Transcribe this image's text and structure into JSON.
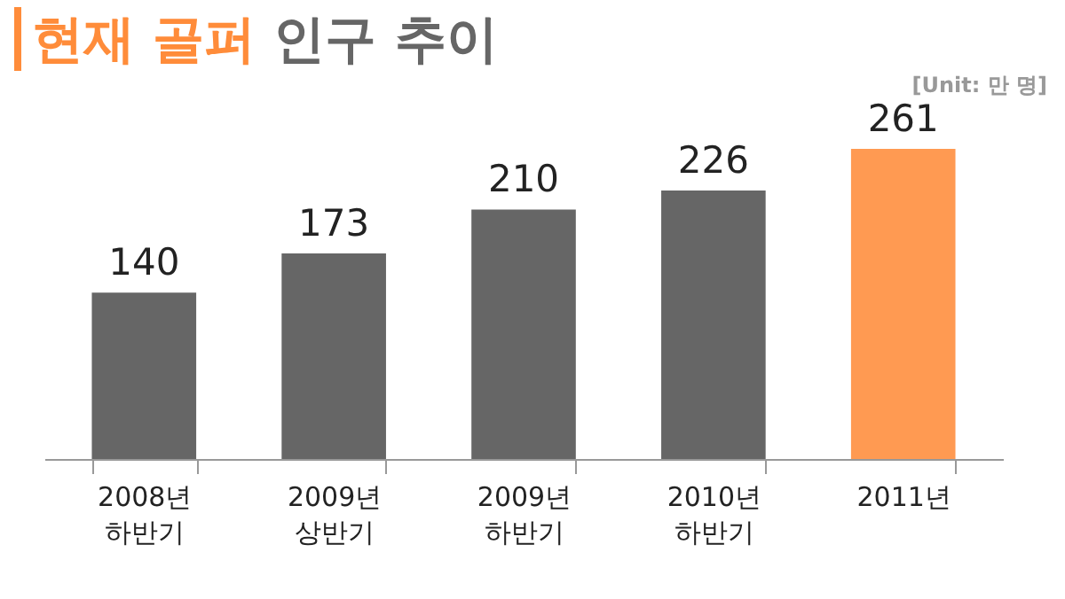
{
  "chart_data": {
    "type": "bar",
    "title": "현재 골퍼 인구 추이",
    "annotations": [
      "[Unit: 만 명]"
    ],
    "categories": [
      "2008년 하반기",
      "2009년 상반기",
      "2009년 하반기",
      "2010년 하반기",
      "2011년"
    ],
    "values": [
      140,
      173,
      210,
      226,
      261
    ],
    "colors": [
      "#666666",
      "#666666",
      "#666666",
      "#666666",
      "#ff9a52"
    ],
    "data_labels": true,
    "grid": false
  }
}
